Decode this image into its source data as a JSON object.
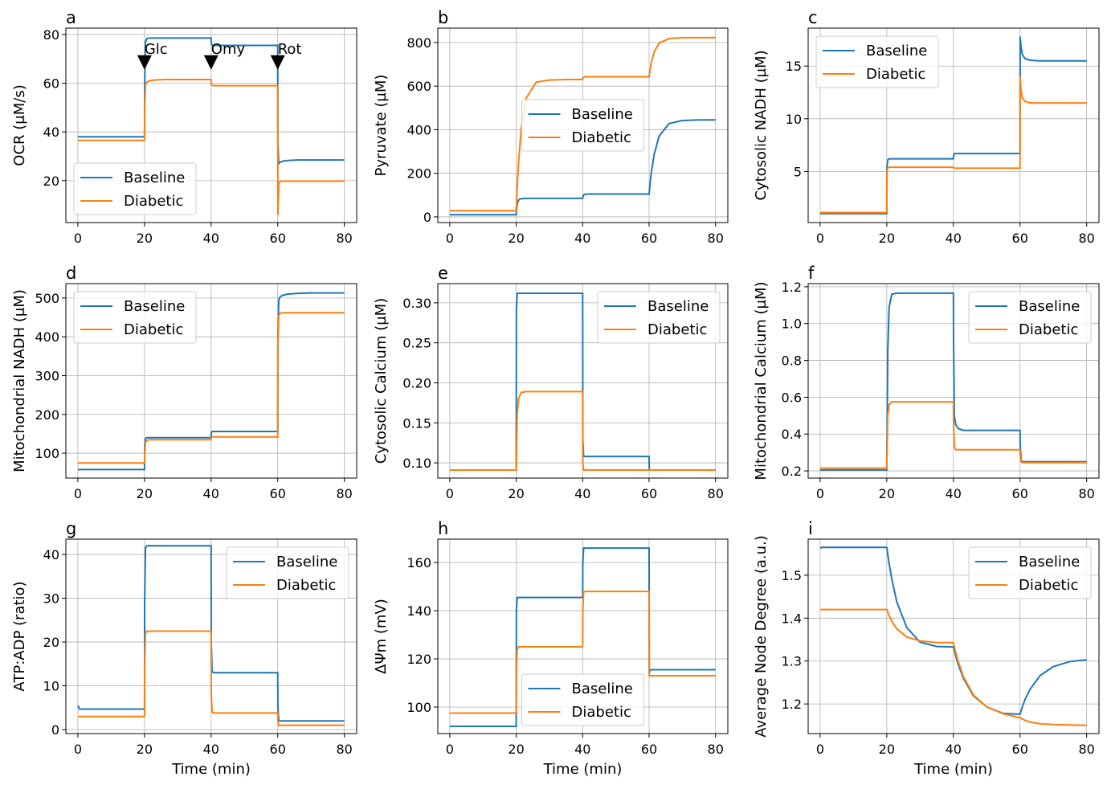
{
  "colors": {
    "Baseline": "#1f77b4",
    "Diabetic": "#ff7f0e",
    "grid": "#b0b0b0"
  },
  "chart_data": [
    {
      "type": "line",
      "panel": "a",
      "ylabel": "OCR (µM/s)",
      "xlabel": "",
      "ylim": [
        2.8,
        82.6
      ],
      "xlim": [
        -3.6,
        83.7
      ],
      "xticks": [
        0,
        20,
        40,
        60,
        80
      ],
      "yticks": [
        20,
        40,
        60,
        80
      ],
      "grid": true,
      "legend": "lower-left",
      "annotations": [
        {
          "x": 20,
          "marker_y": 68.5,
          "label_y": 72,
          "label": "Glc"
        },
        {
          "x": 40,
          "marker_y": 68.5,
          "label_y": 72,
          "label": "Omy"
        },
        {
          "x": 60,
          "marker_y": 68.5,
          "label_y": 72,
          "label": "Rot"
        }
      ],
      "x": [
        0,
        0.5,
        20,
        20.05,
        20.3,
        20.7,
        21.5,
        23,
        26,
        30,
        35,
        40,
        40.05,
        40.3,
        40.7,
        41.5,
        43,
        46,
        50,
        55,
        60,
        60.05,
        60.3,
        60.7,
        61.5,
        63,
        66,
        70,
        75,
        80
      ],
      "series": [
        {
          "name": "Baseline",
          "values": [
            38,
            38,
            38,
            60,
            77,
            78.3,
            78.5,
            78.5,
            78.5,
            78.5,
            78.5,
            78.5,
            76.5,
            75.6,
            75.5,
            75.5,
            75.5,
            75.5,
            75.5,
            75.5,
            75.5,
            35,
            27,
            27.5,
            28,
            28.3,
            28.5,
            28.5,
            28.5,
            28.5
          ]
        },
        {
          "name": "Diabetic",
          "values": [
            36.5,
            36.5,
            36.5,
            50,
            59.5,
            60.5,
            61,
            61.3,
            61.5,
            61.5,
            61.5,
            61.5,
            60,
            59.1,
            59,
            59,
            59,
            59,
            59,
            59,
            59,
            6,
            19,
            19.7,
            19.8,
            19.8,
            19.8,
            19.8,
            19.8,
            19.8
          ]
        }
      ]
    },
    {
      "type": "line",
      "panel": "b",
      "ylabel": "Pyruvate (µM)",
      "xlabel": "",
      "ylim": [
        -26,
        866
      ],
      "xlim": [
        -3.6,
        83.7
      ],
      "xticks": [
        0,
        20,
        40,
        60,
        80
      ],
      "yticks": [
        0,
        200,
        400,
        600,
        800
      ],
      "grid": true,
      "legend": "center",
      "x": [
        0,
        0.5,
        20,
        20.05,
        20.3,
        20.7,
        21.5,
        23,
        26,
        30,
        35,
        40,
        40.05,
        40.3,
        40.7,
        41.5,
        43,
        46,
        50,
        55,
        60,
        60.05,
        60.3,
        60.7,
        61.5,
        63,
        66,
        70,
        75,
        80
      ],
      "series": [
        {
          "name": "Baseline",
          "values": [
            10,
            10,
            10,
            25,
            60,
            78,
            84,
            85,
            85,
            85,
            85,
            85,
            90,
            100,
            104,
            105,
            105,
            105,
            105,
            105,
            105,
            112,
            153,
            207,
            285,
            370,
            428,
            442,
            445,
            445
          ]
        },
        {
          "name": "Diabetic",
          "values": [
            28,
            28,
            28,
            46,
            136,
            251,
            407,
            545,
            618,
            628,
            630,
            630,
            634,
            640,
            643,
            643,
            643,
            643,
            643,
            643,
            643,
            648,
            675,
            709,
            756,
            797,
            818,
            822,
            822,
            822
          ]
        }
      ]
    },
    {
      "type": "line",
      "panel": "c",
      "ylabel": "Cytosolic NADH (µM)",
      "xlabel": "",
      "ylim": [
        0.15,
        18.6
      ],
      "xlim": [
        -3.6,
        83.7
      ],
      "xticks": [
        0,
        20,
        40,
        60,
        80
      ],
      "yticks": [
        5,
        10,
        15
      ],
      "grid": true,
      "legend": "upper-left",
      "x": [
        0,
        0.5,
        20,
        20.05,
        20.3,
        20.7,
        21.5,
        23,
        26,
        30,
        35,
        40,
        40.05,
        40.3,
        40.7,
        41.5,
        43,
        46,
        50,
        55,
        60,
        60.05,
        60.3,
        60.7,
        61.5,
        63,
        66,
        70,
        75,
        80
      ],
      "series": [
        {
          "name": "Baseline",
          "values": [
            1.0,
            1.0,
            1.0,
            5.5,
            6.1,
            6.2,
            6.2,
            6.2,
            6.2,
            6.2,
            6.2,
            6.2,
            6.5,
            6.7,
            6.7,
            6.7,
            6.7,
            6.7,
            6.7,
            6.7,
            6.7,
            17.8,
            16.8,
            16.1,
            15.7,
            15.55,
            15.5,
            15.5,
            15.5,
            15.5
          ]
        },
        {
          "name": "Diabetic",
          "values": [
            1.1,
            1.1,
            1.1,
            5.0,
            5.35,
            5.4,
            5.4,
            5.4,
            5.4,
            5.4,
            5.4,
            5.4,
            5.35,
            5.3,
            5.3,
            5.3,
            5.3,
            5.3,
            5.3,
            5.3,
            5.3,
            14,
            12.7,
            12,
            11.65,
            11.5,
            11.5,
            11.5,
            11.5,
            11.5
          ]
        }
      ]
    },
    {
      "type": "line",
      "panel": "d",
      "ylabel": "Mitochondrial NADH (µM)",
      "xlabel": "",
      "ylim": [
        36,
        537
      ],
      "xlim": [
        -3.6,
        83.7
      ],
      "xticks": [
        0,
        20,
        40,
        60,
        80
      ],
      "yticks": [
        100,
        200,
        300,
        400,
        500
      ],
      "grid": true,
      "legend": "upper-left",
      "x": [
        0,
        0.5,
        20,
        20.05,
        20.3,
        20.7,
        21.5,
        23,
        26,
        30,
        35,
        40,
        40.05,
        40.3,
        40.7,
        41.5,
        43,
        46,
        50,
        55,
        60,
        60.05,
        60.3,
        60.7,
        61.5,
        63,
        66,
        70,
        75,
        80
      ],
      "series": [
        {
          "name": "Baseline",
          "values": [
            58,
            58,
            58,
            120,
            138,
            140,
            140,
            140,
            140,
            140,
            140,
            140,
            152,
            156,
            156,
            156,
            156,
            156,
            156,
            156,
            156,
            400,
            495,
            503,
            507,
            510,
            512,
            513,
            513,
            513
          ]
        },
        {
          "name": "Diabetic",
          "values": [
            75,
            75,
            75,
            100,
            128,
            133,
            135,
            135,
            135,
            135,
            135,
            135,
            140,
            142,
            142,
            142,
            142,
            142,
            142,
            142,
            142,
            380,
            455,
            460,
            462,
            462,
            462,
            462,
            462,
            462
          ]
        }
      ]
    },
    {
      "type": "line",
      "panel": "e",
      "ylabel": "Cytosolic Calcium (µM)",
      "xlabel": "",
      "ylim": [
        0.081,
        0.324
      ],
      "xlim": [
        -3.6,
        83.7
      ],
      "xticks": [
        0,
        20,
        40,
        60,
        80
      ],
      "yticks": [
        0.1,
        0.15,
        0.2,
        0.25,
        0.3
      ],
      "ytick_labels": [
        "0.10",
        "0.15",
        "0.20",
        "0.25",
        "0.30"
      ],
      "grid": true,
      "legend": "upper-right",
      "x": [
        0,
        0.5,
        20,
        20.05,
        20.3,
        20.7,
        21.5,
        23,
        26,
        30,
        35,
        40,
        40.05,
        40.3,
        40.7,
        41.5,
        43,
        46,
        50,
        55,
        60,
        60.05,
        60.3,
        60.7,
        61.5,
        63,
        66,
        70,
        75,
        80
      ],
      "series": [
        {
          "name": "Baseline",
          "values": [
            0.091,
            0.091,
            0.091,
            0.29,
            0.312,
            0.312,
            0.312,
            0.312,
            0.312,
            0.312,
            0.312,
            0.312,
            0.13,
            0.108,
            0.108,
            0.108,
            0.108,
            0.108,
            0.108,
            0.108,
            0.108,
            0.092,
            0.091,
            0.091,
            0.091,
            0.091,
            0.091,
            0.091,
            0.091,
            0.091
          ]
        },
        {
          "name": "Diabetic",
          "values": [
            0.091,
            0.091,
            0.091,
            0.1,
            0.16,
            0.18,
            0.188,
            0.189,
            0.189,
            0.189,
            0.189,
            0.189,
            0.1,
            0.091,
            0.091,
            0.091,
            0.091,
            0.091,
            0.091,
            0.091,
            0.091,
            0.091,
            0.091,
            0.091,
            0.091,
            0.091,
            0.091,
            0.091,
            0.091,
            0.091
          ]
        }
      ]
    },
    {
      "type": "line",
      "panel": "f",
      "ylabel": "Mitochondrial Calcium (µM)",
      "xlabel": "",
      "ylim": [
        0.161,
        1.217
      ],
      "xlim": [
        -3.6,
        83.7
      ],
      "xticks": [
        0,
        20,
        40,
        60,
        80
      ],
      "yticks": [
        0.2,
        0.4,
        0.6,
        0.8,
        1.0,
        1.2
      ],
      "ytick_labels": [
        "0.2",
        "0.4",
        "0.6",
        "0.8",
        "1.0",
        "1.2"
      ],
      "grid": true,
      "legend": "upper-right",
      "x": [
        0,
        0.5,
        20,
        20.05,
        20.3,
        20.7,
        21.5,
        23,
        26,
        30,
        35,
        40,
        40.05,
        40.3,
        40.7,
        41.5,
        43,
        46,
        50,
        55,
        60,
        60.05,
        60.3,
        60.7,
        61.5,
        63,
        66,
        70,
        75,
        80
      ],
      "series": [
        {
          "name": "Baseline",
          "values": [
            0.205,
            0.205,
            0.205,
            0.35,
            0.85,
            1.09,
            1.16,
            1.165,
            1.165,
            1.165,
            1.165,
            1.165,
            0.9,
            0.5,
            0.45,
            0.43,
            0.42,
            0.42,
            0.42,
            0.42,
            0.42,
            0.35,
            0.26,
            0.25,
            0.25,
            0.25,
            0.25,
            0.25,
            0.25,
            0.25
          ]
        },
        {
          "name": "Diabetic",
          "values": [
            0.215,
            0.215,
            0.215,
            0.28,
            0.5,
            0.56,
            0.575,
            0.575,
            0.575,
            0.575,
            0.575,
            0.575,
            0.45,
            0.33,
            0.315,
            0.315,
            0.315,
            0.315,
            0.315,
            0.315,
            0.315,
            0.28,
            0.25,
            0.245,
            0.245,
            0.245,
            0.245,
            0.245,
            0.245,
            0.245
          ]
        }
      ]
    },
    {
      "type": "line",
      "panel": "g",
      "ylabel": "ATP:ADP (ratio)",
      "xlabel": "Time (min)",
      "ylim": [
        -0.9,
        43.5
      ],
      "xlim": [
        -3.6,
        83.7
      ],
      "xticks": [
        0,
        20,
        40,
        60,
        80
      ],
      "yticks": [
        0,
        10,
        20,
        30,
        40
      ],
      "grid": true,
      "legend": "upper-right",
      "x": [
        0,
        0.5,
        20,
        20.05,
        20.3,
        20.7,
        21.5,
        23,
        26,
        30,
        35,
        40,
        40.05,
        40.3,
        40.7,
        41.5,
        43,
        46,
        50,
        55,
        60,
        60.05,
        60.3,
        60.7,
        61.5,
        63,
        66,
        70,
        75,
        80
      ],
      "series": [
        {
          "name": "Baseline",
          "values": [
            5.5,
            4.7,
            4.7,
            30,
            41.5,
            42,
            42,
            42,
            42,
            42,
            42,
            42,
            20,
            13.3,
            13,
            13,
            13,
            13,
            13,
            13,
            13,
            5,
            2.1,
            2,
            2,
            2,
            2,
            2,
            2,
            2
          ]
        },
        {
          "name": "Diabetic",
          "values": [
            3,
            3,
            3,
            15,
            22,
            22.5,
            22.5,
            22.5,
            22.5,
            22.5,
            22.5,
            22.5,
            8,
            4,
            3.8,
            3.8,
            3.8,
            3.8,
            3.8,
            3.8,
            3.8,
            2,
            1,
            1,
            1,
            1,
            1,
            1,
            1,
            1
          ]
        }
      ]
    },
    {
      "type": "line",
      "panel": "h",
      "ylabel": "ΔΨm (mV)",
      "xlabel": "Time (min)",
      "ylim": [
        89,
        169.7
      ],
      "xlim": [
        -3.6,
        83.7
      ],
      "xticks": [
        0,
        20,
        40,
        60,
        80
      ],
      "yticks": [
        100,
        120,
        140,
        160
      ],
      "grid": true,
      "legend": "lower-center",
      "x": [
        0,
        0.5,
        20,
        20.05,
        20.3,
        20.7,
        21.5,
        23,
        26,
        30,
        35,
        40,
        40.05,
        40.3,
        40.7,
        41.5,
        43,
        46,
        50,
        55,
        60,
        60.05,
        60.3,
        60.7,
        61.5,
        63,
        66,
        70,
        75,
        80
      ],
      "series": [
        {
          "name": "Baseline",
          "values": [
            92,
            92,
            92,
            140,
            145.5,
            145.5,
            145.5,
            145.5,
            145.5,
            145.5,
            145.5,
            145.5,
            160,
            166,
            166,
            166,
            166,
            166,
            166,
            166,
            166,
            114,
            115.2,
            115.5,
            115.5,
            115.5,
            115.5,
            115.5,
            115.5,
            115.5
          ]
        },
        {
          "name": "Diabetic",
          "values": [
            97.5,
            97.5,
            97.5,
            115,
            124,
            125,
            125,
            125,
            125,
            125,
            125,
            125,
            140,
            147.8,
            148,
            148,
            148,
            148,
            148,
            148,
            148,
            113,
            113,
            113,
            113,
            113,
            113,
            113,
            113,
            113
          ]
        }
      ]
    },
    {
      "type": "line",
      "panel": "i",
      "ylabel": "Average Node Degree (a.u.)",
      "xlabel": "Time (min)",
      "ylim": [
        1.131,
        1.584
      ],
      "xlim": [
        -3.6,
        83.7
      ],
      "xticks": [
        0,
        20,
        40,
        60,
        80
      ],
      "yticks": [
        1.2,
        1.3,
        1.4,
        1.5
      ],
      "ytick_labels": [
        "1.2",
        "1.3",
        "1.4",
        "1.5"
      ],
      "grid": true,
      "legend": "upper-right",
      "x": [
        0,
        0.5,
        20,
        20.05,
        20.3,
        20.7,
        21.5,
        23,
        26,
        30,
        35,
        40,
        40.05,
        40.3,
        40.7,
        41.5,
        43,
        46,
        50,
        55,
        60,
        60.05,
        60.3,
        60.7,
        61.5,
        63,
        66,
        70,
        75,
        80
      ],
      "series": [
        {
          "name": "Baseline",
          "values": [
            1.563,
            1.565,
            1.565,
            1.563,
            1.548,
            1.527,
            1.491,
            1.438,
            1.378,
            1.344,
            1.334,
            1.333,
            1.331,
            1.323,
            1.312,
            1.291,
            1.26,
            1.219,
            1.193,
            1.178,
            1.176,
            1.177,
            1.184,
            1.193,
            1.21,
            1.234,
            1.266,
            1.287,
            1.299,
            1.303
          ]
        },
        {
          "name": "Diabetic",
          "values": [
            1.42,
            1.42,
            1.42,
            1.419,
            1.414,
            1.406,
            1.393,
            1.375,
            1.356,
            1.347,
            1.343,
            1.343,
            1.341,
            1.333,
            1.32,
            1.298,
            1.264,
            1.221,
            1.193,
            1.177,
            1.168,
            1.168,
            1.167,
            1.165,
            1.162,
            1.158,
            1.154,
            1.152,
            1.151,
            1.15
          ]
        }
      ]
    }
  ]
}
